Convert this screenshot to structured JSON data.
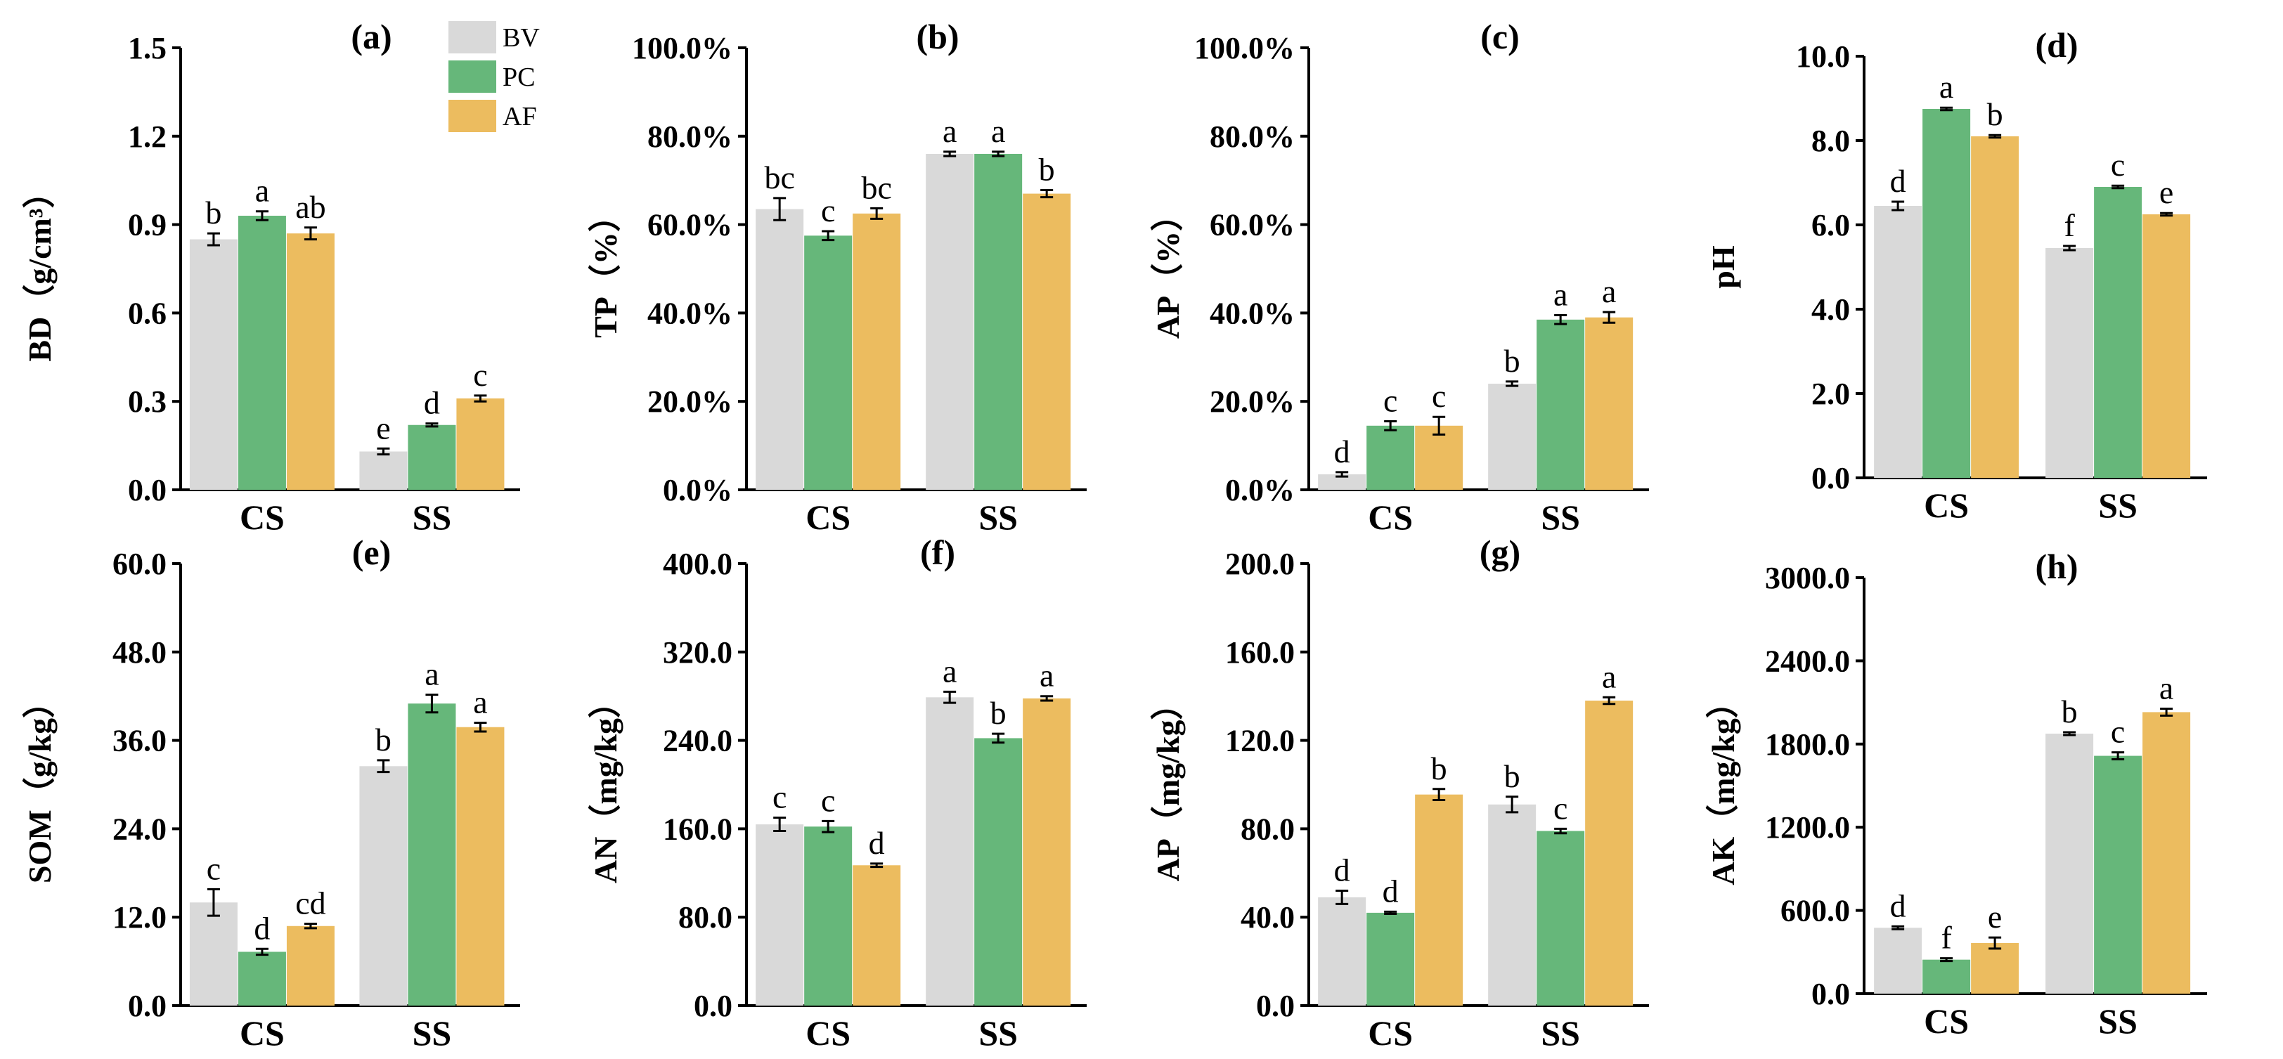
{
  "legend": {
    "entries": [
      {
        "name": "BV",
        "color": "#d9d9d9"
      },
      {
        "name": "PC",
        "color": "#66b77a"
      },
      {
        "name": "AF",
        "color": "#ecbc5f"
      }
    ]
  },
  "chart_data": [
    {
      "type": "bar",
      "panel": "(a)",
      "ylabel": "BD（g/cm³）",
      "categories": [
        "CS",
        "SS"
      ],
      "ylim": [
        0,
        1.5
      ],
      "yticks": [
        "0.0",
        "0.3",
        "0.6",
        "0.9",
        "1.2",
        "1.5"
      ],
      "series": [
        {
          "name": "BV",
          "values": [
            0.85,
            0.13
          ],
          "errors": [
            0.02,
            0.01
          ],
          "labels": [
            "b",
            "e"
          ]
        },
        {
          "name": "PC",
          "values": [
            0.93,
            0.22
          ],
          "errors": [
            0.015,
            0.005
          ],
          "labels": [
            "a",
            "d"
          ]
        },
        {
          "name": "AF",
          "values": [
            0.87,
            0.31
          ],
          "errors": [
            0.02,
            0.01
          ],
          "labels": [
            "ab",
            "c"
          ]
        }
      ]
    },
    {
      "type": "bar",
      "panel": "(b)",
      "ylabel": "TP（%）",
      "categories": [
        "CS",
        "SS"
      ],
      "ylim": [
        0,
        100
      ],
      "yticks": [
        "0.0%",
        "20.0%",
        "40.0%",
        "60.0%",
        "80.0%",
        "100.0%"
      ],
      "series": [
        {
          "name": "BV",
          "values": [
            63.5,
            76
          ],
          "errors": [
            2.5,
            0.5
          ],
          "labels": [
            "bc",
            "a"
          ]
        },
        {
          "name": "PC",
          "values": [
            57.5,
            76
          ],
          "errors": [
            1,
            0.5
          ],
          "labels": [
            "c",
            "a"
          ]
        },
        {
          "name": "AF",
          "values": [
            62.5,
            67
          ],
          "errors": [
            1.2,
            0.8
          ],
          "labels": [
            "bc",
            "b"
          ]
        }
      ]
    },
    {
      "type": "bar",
      "panel": "(c)",
      "ylabel": "AP（%）",
      "categories": [
        "CS",
        "SS"
      ],
      "ylim": [
        0,
        100
      ],
      "yticks": [
        "0.0%",
        "20.0%",
        "40.0%",
        "60.0%",
        "80.0%",
        "100.0%"
      ],
      "series": [
        {
          "name": "BV",
          "values": [
            3.5,
            24
          ],
          "errors": [
            0.5,
            0.5
          ],
          "labels": [
            "d",
            "b"
          ]
        },
        {
          "name": "PC",
          "values": [
            14.5,
            38.5
          ],
          "errors": [
            1,
            1
          ],
          "labels": [
            "c",
            "a"
          ]
        },
        {
          "name": "AF",
          "values": [
            14.5,
            39
          ],
          "errors": [
            2,
            1.2
          ],
          "labels": [
            "c",
            "a"
          ]
        }
      ]
    },
    {
      "type": "bar",
      "panel": "(d)",
      "ylabel": "pH",
      "categories": [
        "CS",
        "SS"
      ],
      "ylim": [
        0,
        10
      ],
      "yticks": [
        "0.0",
        "2.0",
        "4.0",
        "6.0",
        "8.0",
        "10.0"
      ],
      "series": [
        {
          "name": "BV",
          "values": [
            6.45,
            5.45
          ],
          "errors": [
            0.1,
            0.05
          ],
          "labels": [
            "d",
            "f"
          ]
        },
        {
          "name": "PC",
          "values": [
            8.75,
            6.9
          ],
          "errors": [
            0.03,
            0.03
          ],
          "labels": [
            "a",
            "c"
          ]
        },
        {
          "name": "AF",
          "values": [
            8.1,
            6.25
          ],
          "errors": [
            0.03,
            0.03
          ],
          "labels": [
            "b",
            "e"
          ]
        }
      ]
    },
    {
      "type": "bar",
      "panel": "(e)",
      "ylabel": "SOM（g/kg）",
      "categories": [
        "CS",
        "SS"
      ],
      "ylim": [
        0,
        60
      ],
      "yticks": [
        "0.0",
        "12.0",
        "24.0",
        "36.0",
        "48.0",
        "60.0"
      ],
      "series": [
        {
          "name": "BV",
          "values": [
            14,
            32.5
          ],
          "errors": [
            1.8,
            0.8
          ],
          "labels": [
            "c",
            "b"
          ]
        },
        {
          "name": "PC",
          "values": [
            7.3,
            41
          ],
          "errors": [
            0.4,
            1.2
          ],
          "labels": [
            "d",
            "a"
          ]
        },
        {
          "name": "AF",
          "values": [
            10.8,
            37.8
          ],
          "errors": [
            0.3,
            0.6
          ],
          "labels": [
            "cd",
            "a"
          ]
        }
      ]
    },
    {
      "type": "bar",
      "panel": "(f)",
      "ylabel": "AN（mg/kg）",
      "categories": [
        "CS",
        "SS"
      ],
      "ylim": [
        0,
        400
      ],
      "yticks": [
        "0.0",
        "80.0",
        "160.0",
        "240.0",
        "320.0",
        "400.0"
      ],
      "series": [
        {
          "name": "BV",
          "values": [
            164,
            279
          ],
          "errors": [
            6,
            5
          ],
          "labels": [
            "c",
            "a"
          ]
        },
        {
          "name": "PC",
          "values": [
            162,
            242
          ],
          "errors": [
            5,
            4
          ],
          "labels": [
            "c",
            "b"
          ]
        },
        {
          "name": "AF",
          "values": [
            127,
            278
          ],
          "errors": [
            1.5,
            2
          ],
          "labels": [
            "d",
            "a"
          ]
        }
      ]
    },
    {
      "type": "bar",
      "panel": "(g)",
      "ylabel": "AP（mg/kg）",
      "categories": [
        "CS",
        "SS"
      ],
      "ylim": [
        0,
        200
      ],
      "yticks": [
        "0.0",
        "40.0",
        "80.0",
        "120.0",
        "160.0",
        "200.0"
      ],
      "series": [
        {
          "name": "BV",
          "values": [
            49,
            91
          ],
          "errors": [
            3,
            3.5
          ],
          "labels": [
            "d",
            "b"
          ]
        },
        {
          "name": "PC",
          "values": [
            42,
            79
          ],
          "errors": [
            0.5,
            1
          ],
          "labels": [
            "d",
            "c"
          ]
        },
        {
          "name": "AF",
          "values": [
            95.5,
            138
          ],
          "errors": [
            2.5,
            1.5
          ],
          "labels": [
            "b",
            "a"
          ]
        }
      ]
    },
    {
      "type": "bar",
      "panel": "(h)",
      "ylabel": "AK（mg/kg）",
      "categories": [
        "CS",
        "SS"
      ],
      "ylim": [
        0,
        3000
      ],
      "yticks": [
        "0.0",
        "600.0",
        "1200.0",
        "1800.0",
        "2400.0",
        "3000.0"
      ],
      "series": [
        {
          "name": "BV",
          "values": [
            475,
            1875
          ],
          "errors": [
            10,
            10
          ],
          "labels": [
            "d",
            "b"
          ]
        },
        {
          "name": "PC",
          "values": [
            245,
            1715
          ],
          "errors": [
            10,
            25
          ],
          "labels": [
            "f",
            "c"
          ]
        },
        {
          "name": "AF",
          "values": [
            365,
            2030
          ],
          "errors": [
            40,
            25
          ],
          "labels": [
            "e",
            "a"
          ]
        }
      ]
    }
  ]
}
